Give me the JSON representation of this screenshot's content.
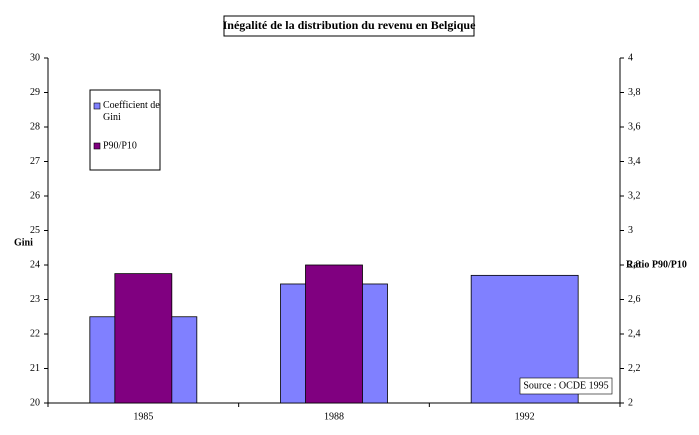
{
  "chart_data": {
    "type": "bar",
    "title": "Inégalité de la distribution du revenu en Belgique",
    "ylabel": "Gini",
    "y2label": "Ratio P90/P10",
    "annotation": "Source : OCDE 1995",
    "categories": [
      "1985",
      "1988",
      "1992"
    ],
    "series": [
      {
        "name": "Coefficient de Gini",
        "color": "#8080ff",
        "values": [
          22.5,
          23.45,
          23.7
        ]
      },
      {
        "name": "P90/P10",
        "color": "#800080",
        "axis": "y2",
        "values": [
          2.75,
          2.8,
          null
        ]
      }
    ],
    "ylim": [
      20,
      30
    ],
    "yticks": [
      20,
      21,
      22,
      23,
      24,
      25,
      26,
      27,
      28,
      29,
      30
    ],
    "y2lim": [
      2,
      4
    ],
    "y2ticks": [
      2,
      {
        "value": 2.2,
        "label": "2,2"
      },
      {
        "value": 2.4,
        "label": "2,4"
      },
      {
        "value": 2.6,
        "label": "2,6"
      },
      {
        "value": 2.8,
        "label": "2,8"
      },
      3,
      {
        "value": 3.2,
        "label": "3,2"
      },
      {
        "value": 3.4,
        "label": "3,4"
      },
      {
        "value": 3.6,
        "label": "3,6"
      },
      {
        "value": 3.8,
        "label": "3,8"
      },
      4
    ],
    "legend": "upper left"
  }
}
